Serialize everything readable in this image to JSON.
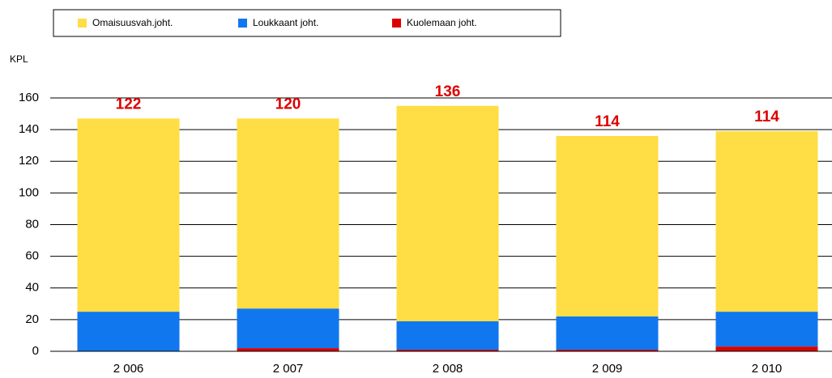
{
  "chart_data": {
    "type": "stacked_bar",
    "y_axis_label": "KPL",
    "categories": [
      "2 006",
      "2 007",
      "2 008",
      "2 009",
      "2 010"
    ],
    "series": [
      {
        "name": "Kuolemaan joht.",
        "color": "#dd0000",
        "values": [
          0,
          2,
          1,
          1,
          3
        ]
      },
      {
        "name": "Loukkaant joht.",
        "color": "#1177ee",
        "values": [
          25,
          25,
          18,
          21,
          22
        ]
      },
      {
        "name": "Omaisuusvah.joht.",
        "color": "#ffdd44",
        "values": [
          122,
          120,
          136,
          114,
          114
        ]
      }
    ],
    "legend_order": [
      2,
      1,
      0
    ],
    "ylim": [
      0,
      160
    ],
    "yticks": [
      0,
      20,
      40,
      60,
      80,
      100,
      120,
      140,
      160
    ],
    "grid": true
  }
}
